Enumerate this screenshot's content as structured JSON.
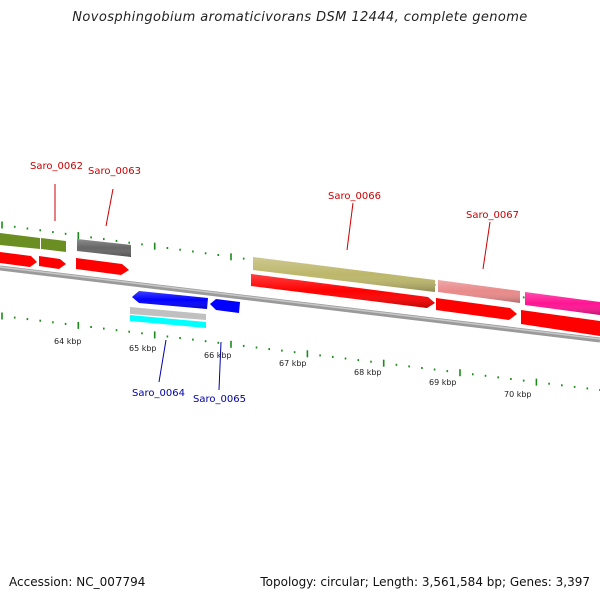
{
  "title": "Novosphingobium aromaticivorans DSM 12444, complete genome",
  "footer": {
    "accession": "Accession: NC_007794",
    "stats": "Topology: circular; Length: 3,561,584 bp; Genes: 3,397"
  },
  "colors": {
    "forward_label": "#cc0000",
    "reverse_label": "#0000aa",
    "tick": "#1a8a1a",
    "backbone": "#808080",
    "cds": "#ff0000",
    "olive_gene": "#6b8e23",
    "gray_gene": "#666666",
    "khaki_gene": "#bdb76b",
    "salmon_gene": "#e98a8a",
    "magenta_gene": "#ff1493",
    "blue_gene": "#0000ff",
    "silver_gene": "#c0c0c0",
    "cyan_gene": "#00ffff"
  },
  "kbp_labels": [
    "64 kbp",
    "65 kbp",
    "66 kbp",
    "67 kbp",
    "68 kbp",
    "69 kbp",
    "70 kbp"
  ],
  "gene_labels": {
    "forward": [
      "Saro_0062",
      "Saro_0063",
      "Saro_0066",
      "Saro_0067"
    ],
    "reverse": [
      "Saro_0064",
      "Saro_0065"
    ]
  }
}
